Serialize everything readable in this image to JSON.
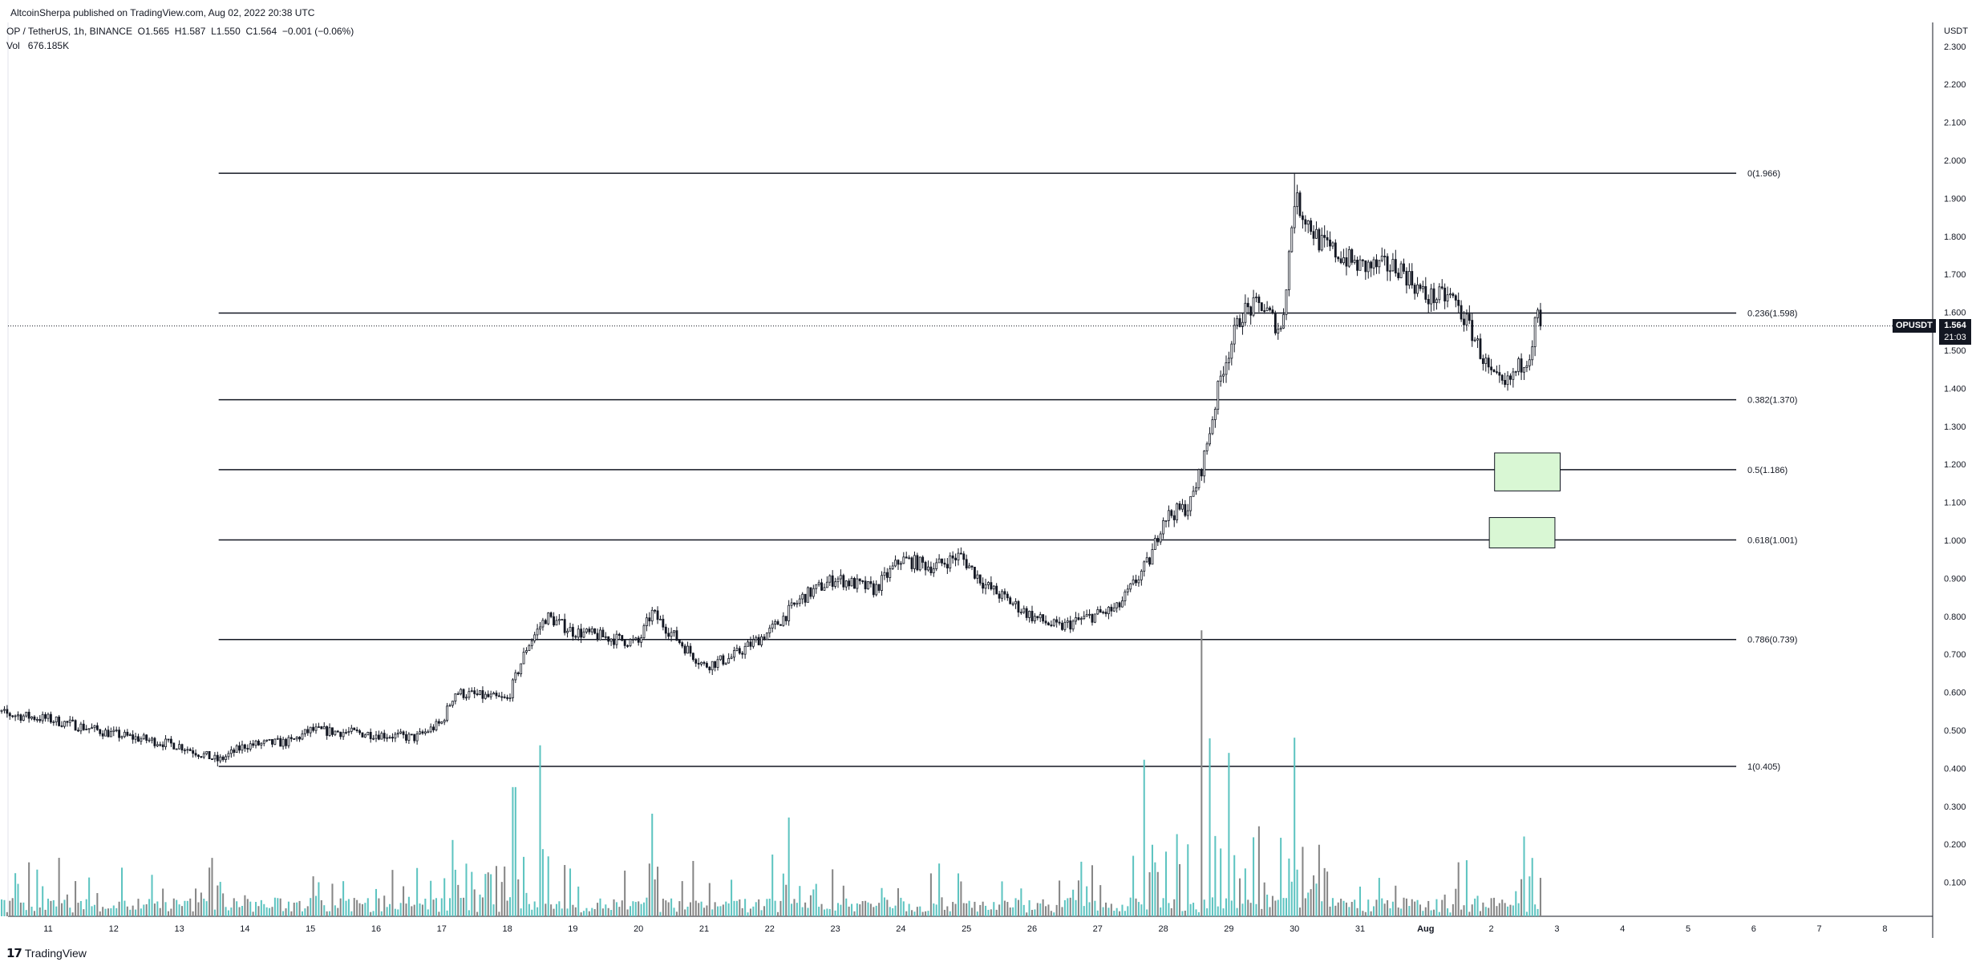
{
  "header": {
    "publisher": "AltcoinSherpa published on TradingView.com, Aug 02, 2022 20:38 UTC",
    "symbol": "OP / TetherUS, 1h, BINANCE",
    "ohlc": {
      "o_label": "O",
      "o": "1.565",
      "h_label": "H",
      "h": "1.587",
      "l_label": "L",
      "l": "1.550",
      "c_label": "C",
      "c": "1.564",
      "change": "−0.001 (−0.06%)"
    },
    "vol_label": "Vol",
    "vol_value": "676.185K"
  },
  "price_axis": {
    "unit": "USDT",
    "ticks": [
      "2.300",
      "2.200",
      "2.100",
      "2.000",
      "1.900",
      "1.800",
      "1.700",
      "1.600",
      "1.500",
      "1.400",
      "1.300",
      "1.200",
      "1.100",
      "1.000",
      "0.900",
      "0.800",
      "0.700",
      "0.600",
      "0.500",
      "0.400",
      "0.300",
      "0.200",
      "0.100"
    ]
  },
  "time_axis": {
    "ticks": [
      "11",
      "12",
      "13",
      "14",
      "15",
      "16",
      "17",
      "18",
      "19",
      "20",
      "21",
      "22",
      "23",
      "24",
      "25",
      "26",
      "27",
      "28",
      "29",
      "30",
      "31",
      "Aug",
      "2",
      "3",
      "4",
      "5",
      "6",
      "7",
      "8"
    ]
  },
  "current": {
    "symbol": "OPUSDT",
    "price": "1.564",
    "countdown": "21:03"
  },
  "brand": "TradingView",
  "colors": {
    "candle": "#131722",
    "volume_up": "#5ec4c1",
    "volume_down": "#868686",
    "box": "#d9f7d4"
  },
  "chart_data": {
    "type": "candlestick",
    "interval": "1h",
    "x_range": [
      "Jul 10",
      "Aug 8"
    ],
    "ylim": [
      0.0,
      2.36
    ],
    "price_path": [
      {
        "day": 10.0,
        "price": 0.55
      },
      {
        "day": 11.0,
        "price": 0.53
      },
      {
        "day": 12.0,
        "price": 0.49
      },
      {
        "day": 13.0,
        "price": 0.46
      },
      {
        "day": 13.6,
        "price": 0.42
      },
      {
        "day": 14.0,
        "price": 0.46
      },
      {
        "day": 14.7,
        "price": 0.47
      },
      {
        "day": 15.0,
        "price": 0.5
      },
      {
        "day": 16.0,
        "price": 0.49
      },
      {
        "day": 16.6,
        "price": 0.48
      },
      {
        "day": 17.0,
        "price": 0.52
      },
      {
        "day": 17.2,
        "price": 0.6
      },
      {
        "day": 18.0,
        "price": 0.58
      },
      {
        "day": 18.3,
        "price": 0.72
      },
      {
        "day": 18.6,
        "price": 0.8
      },
      {
        "day": 19.0,
        "price": 0.76
      },
      {
        "day": 20.0,
        "price": 0.73
      },
      {
        "day": 20.2,
        "price": 0.81
      },
      {
        "day": 20.7,
        "price": 0.72
      },
      {
        "day": 21.0,
        "price": 0.67
      },
      {
        "day": 21.4,
        "price": 0.69
      },
      {
        "day": 22.0,
        "price": 0.76
      },
      {
        "day": 22.5,
        "price": 0.85
      },
      {
        "day": 23.0,
        "price": 0.9
      },
      {
        "day": 23.6,
        "price": 0.87
      },
      {
        "day": 24.0,
        "price": 0.95
      },
      {
        "day": 24.5,
        "price": 0.93
      },
      {
        "day": 24.9,
        "price": 0.96
      },
      {
        "day": 25.3,
        "price": 0.88
      },
      {
        "day": 26.0,
        "price": 0.8
      },
      {
        "day": 26.4,
        "price": 0.77
      },
      {
        "day": 26.9,
        "price": 0.8
      },
      {
        "day": 27.3,
        "price": 0.82
      },
      {
        "day": 27.8,
        "price": 0.95
      },
      {
        "day": 28.0,
        "price": 1.06
      },
      {
        "day": 28.4,
        "price": 1.09
      },
      {
        "day": 28.6,
        "price": 1.2
      },
      {
        "day": 28.9,
        "price": 1.45
      },
      {
        "day": 29.2,
        "price": 1.6
      },
      {
        "day": 29.5,
        "price": 1.62
      },
      {
        "day": 29.8,
        "price": 1.55
      },
      {
        "day": 30.0,
        "price": 1.9
      },
      {
        "day": 30.4,
        "price": 1.78
      },
      {
        "day": 31.0,
        "price": 1.72
      },
      {
        "day": 31.6,
        "price": 1.72
      },
      {
        "day": 32.0,
        "price": 1.64
      },
      {
        "day": 32.4,
        "price": 1.64
      },
      {
        "day": 32.7,
        "price": 1.55
      },
      {
        "day": 33.0,
        "price": 1.43
      },
      {
        "day": 33.2,
        "price": 1.4
      },
      {
        "day": 33.6,
        "price": 1.5
      },
      {
        "day": 33.7,
        "price": 1.6
      },
      {
        "day": 33.75,
        "price": 1.564
      }
    ],
    "high": 1.966,
    "low": 0.405,
    "fibonacci": [
      {
        "label": "0(1.966)",
        "value": 1.966
      },
      {
        "label": "0.236(1.598)",
        "value": 1.598
      },
      {
        "label": "0.382(1.370)",
        "value": 1.37
      },
      {
        "label": "0.5(1.186)",
        "value": 1.186
      },
      {
        "label": "0.618(1.001)",
        "value": 1.001
      },
      {
        "label": "0.786(0.739)",
        "value": 0.739
      },
      {
        "label": "1(0.405)",
        "value": 0.405
      }
    ],
    "fib_start_day": 13.6,
    "zones": [
      {
        "from_day": 33.05,
        "to_day": 34.05,
        "low": 1.13,
        "high": 1.23
      },
      {
        "from_day": 32.97,
        "to_day": 33.97,
        "low": 0.98,
        "high": 1.06
      }
    ],
    "volume_peaks": [
      {
        "day": 18.1,
        "value": 0.38
      },
      {
        "day": 18.5,
        "value": 0.45
      },
      {
        "day": 18.1,
        "value": 0.34
      },
      {
        "day": 20.2,
        "value": 0.27
      },
      {
        "day": 22.3,
        "value": 0.26
      },
      {
        "day": 27.7,
        "value": 0.35
      },
      {
        "day": 28.6,
        "value": 0.6
      },
      {
        "day": 28.7,
        "value": 0.44
      },
      {
        "day": 29.0,
        "value": 0.43
      },
      {
        "day": 30.0,
        "value": 0.47
      },
      {
        "day": 33.5,
        "value": 0.21
      }
    ]
  }
}
